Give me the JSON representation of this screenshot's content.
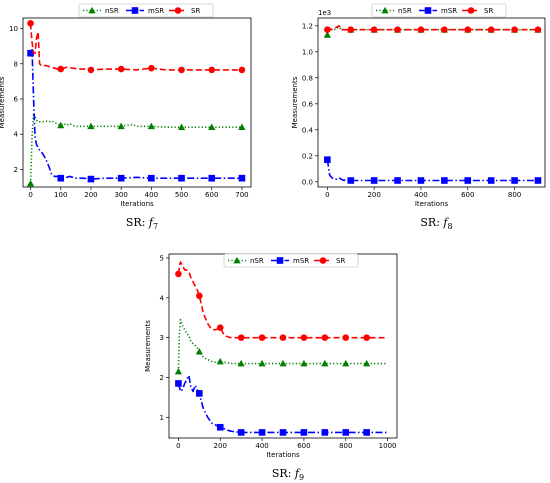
{
  "chart_data": [
    {
      "type": "line",
      "caption": "SR: ",
      "caption_fn": "f",
      "caption_sub": "7",
      "xlabel": "Iterations",
      "ylabel": "Measurements",
      "scale_label": "",
      "xlim": [
        -25,
        730
      ],
      "ylim": [
        1.0,
        10.6
      ],
      "xticks": [
        0,
        100,
        200,
        300,
        400,
        500,
        600,
        700
      ],
      "yticks": [
        2,
        4,
        6,
        8,
        10
      ],
      "series": [
        {
          "name": "nSR",
          "color": "#008000",
          "style": "dotted",
          "marker": "triangle",
          "x": [
            0,
            5,
            10,
            15,
            20,
            25,
            30,
            40,
            50,
            60,
            70,
            80,
            90,
            100,
            110,
            120,
            130,
            140,
            150,
            175,
            200,
            250,
            300,
            340,
            350,
            380,
            400,
            450,
            500,
            550,
            600,
            650,
            700
          ],
          "y": [
            1.2,
            3.9,
            5.2,
            5.0,
            4.8,
            4.7,
            4.7,
            4.7,
            4.75,
            4.7,
            4.75,
            4.65,
            4.6,
            4.5,
            4.6,
            4.5,
            4.6,
            4.5,
            4.45,
            4.45,
            4.45,
            4.45,
            4.45,
            4.55,
            4.45,
            4.45,
            4.45,
            4.4,
            4.4,
            4.4,
            4.4,
            4.4,
            4.4
          ],
          "markers_x": [
            0,
            100,
            200,
            300,
            400,
            500,
            600,
            700
          ],
          "markers_y": [
            1.2,
            4.5,
            4.45,
            4.45,
            4.45,
            4.4,
            4.4,
            4.4
          ]
        },
        {
          "name": "mSR",
          "color": "#0000ff",
          "style": "dashdot",
          "marker": "square",
          "x": [
            0,
            5,
            10,
            15,
            20,
            30,
            40,
            50,
            60,
            70,
            80,
            90,
            100,
            110,
            120,
            130,
            140,
            150,
            175,
            200,
            250,
            300,
            350,
            400,
            450,
            500,
            550,
            600,
            650,
            700
          ],
          "y": [
            8.6,
            8.8,
            6.0,
            3.8,
            3.4,
            3.1,
            2.9,
            2.6,
            2.2,
            1.7,
            1.6,
            1.6,
            1.5,
            1.55,
            1.55,
            1.6,
            1.55,
            1.5,
            1.5,
            1.45,
            1.5,
            1.5,
            1.55,
            1.5,
            1.5,
            1.5,
            1.5,
            1.5,
            1.5,
            1.5
          ],
          "markers_x": [
            0,
            100,
            200,
            300,
            400,
            500,
            600,
            700
          ],
          "markers_y": [
            8.6,
            1.5,
            1.45,
            1.5,
            1.5,
            1.5,
            1.5,
            1.5
          ]
        },
        {
          "name": "SR",
          "color": "#ff0000",
          "style": "dashed",
          "marker": "circle",
          "x": [
            0,
            5,
            10,
            15,
            20,
            25,
            30,
            35,
            40,
            50,
            60,
            70,
            80,
            90,
            100,
            120,
            140,
            160,
            180,
            200,
            250,
            300,
            350,
            400,
            450,
            500,
            550,
            600,
            650,
            700
          ],
          "y": [
            10.3,
            9.2,
            8.6,
            8.6,
            9.5,
            9.8,
            8.0,
            7.9,
            7.9,
            7.9,
            7.85,
            7.8,
            7.75,
            7.7,
            7.7,
            7.8,
            7.75,
            7.7,
            7.7,
            7.65,
            7.7,
            7.7,
            7.65,
            7.75,
            7.65,
            7.65,
            7.65,
            7.65,
            7.65,
            7.65
          ],
          "markers_x": [
            0,
            100,
            200,
            300,
            400,
            500,
            600,
            700
          ],
          "markers_y": [
            10.3,
            7.7,
            7.65,
            7.7,
            7.75,
            7.65,
            7.65,
            7.65
          ]
        }
      ]
    },
    {
      "type": "line",
      "caption": "SR: ",
      "caption_fn": "f",
      "caption_sub": "8",
      "xlabel": "Iterations",
      "ylabel": "Measurements",
      "scale_label": "1e3",
      "xlim": [
        -40,
        930
      ],
      "ylim": [
        -0.04,
        1.26
      ],
      "xticks": [
        0,
        200,
        400,
        600,
        800
      ],
      "yticks": [
        0.0,
        0.2,
        0.4,
        0.6,
        0.8,
        1.0,
        1.2
      ],
      "series": [
        {
          "name": "nSR",
          "color": "#008000",
          "style": "dotted",
          "marker": "triangle",
          "x": [
            0,
            10,
            20,
            30,
            50,
            60,
            80,
            100,
            150,
            200,
            300,
            400,
            500,
            600,
            700,
            800,
            900
          ],
          "y": [
            1.13,
            1.17,
            1.17,
            1.17,
            1.19,
            1.17,
            1.17,
            1.17,
            1.17,
            1.17,
            1.17,
            1.17,
            1.17,
            1.17,
            1.17,
            1.17,
            1.17
          ],
          "markers_x": [
            0,
            100,
            200,
            300,
            400,
            500,
            600,
            700,
            800,
            900
          ],
          "markers_y": [
            1.13,
            1.17,
            1.17,
            1.17,
            1.17,
            1.17,
            1.17,
            1.17,
            1.17,
            1.17
          ]
        },
        {
          "name": "mSR",
          "color": "#0000ff",
          "style": "dashdot",
          "marker": "square",
          "x": [
            0,
            10,
            20,
            30,
            40,
            50,
            60,
            70,
            80,
            100,
            200,
            300,
            400,
            500,
            600,
            700,
            800,
            900
          ],
          "y": [
            0.17,
            0.05,
            0.03,
            0.02,
            0.02,
            0.03,
            0.02,
            0.01,
            0.02,
            0.01,
            0.01,
            0.01,
            0.01,
            0.01,
            0.01,
            0.01,
            0.01,
            0.01
          ],
          "markers_x": [
            0,
            100,
            200,
            300,
            400,
            500,
            600,
            700,
            800,
            900
          ],
          "markers_y": [
            0.17,
            0.01,
            0.01,
            0.01,
            0.01,
            0.01,
            0.01,
            0.01,
            0.01,
            0.01
          ]
        },
        {
          "name": "SR",
          "color": "#ff0000",
          "style": "dashed",
          "marker": "circle",
          "x": [
            0,
            10,
            20,
            30,
            40,
            50,
            60,
            80,
            100,
            200,
            300,
            400,
            500,
            600,
            700,
            800,
            900
          ],
          "y": [
            1.17,
            1.18,
            1.17,
            1.18,
            1.19,
            1.2,
            1.17,
            1.17,
            1.17,
            1.17,
            1.17,
            1.17,
            1.17,
            1.17,
            1.17,
            1.17,
            1.17
          ],
          "markers_x": [
            0,
            100,
            200,
            300,
            400,
            500,
            600,
            700,
            800,
            900
          ],
          "markers_y": [
            1.17,
            1.17,
            1.17,
            1.17,
            1.17,
            1.17,
            1.17,
            1.17,
            1.17,
            1.17
          ]
        }
      ]
    },
    {
      "type": "line",
      "caption": "SR: ",
      "caption_fn": "f",
      "caption_sub": "9",
      "xlabel": "Iterations",
      "ylabel": "Measurements",
      "scale_label": "",
      "xlim": [
        -45,
        1045
      ],
      "ylim": [
        0.48,
        5.1
      ],
      "xticks": [
        0,
        200,
        400,
        600,
        800,
        1000
      ],
      "yticks": [
        1,
        2,
        3,
        4,
        5
      ],
      "series": [
        {
          "name": "nSR",
          "color": "#008000",
          "style": "dotted",
          "marker": "triangle",
          "x": [
            0,
            5,
            10,
            20,
            30,
            40,
            50,
            60,
            70,
            80,
            90,
            100,
            120,
            140,
            160,
            180,
            200,
            250,
            300,
            400,
            500,
            600,
            700,
            800,
            900,
            1000
          ],
          "y": [
            2.15,
            3.1,
            3.45,
            3.3,
            3.2,
            3.1,
            3.05,
            2.9,
            2.85,
            2.8,
            2.75,
            2.65,
            2.5,
            2.45,
            2.4,
            2.38,
            2.4,
            2.35,
            2.35,
            2.35,
            2.35,
            2.35,
            2.35,
            2.35,
            2.35,
            2.35
          ],
          "markers_x": [
            0,
            100,
            200,
            300,
            400,
            500,
            600,
            700,
            800,
            900
          ],
          "markers_y": [
            2.15,
            2.65,
            2.4,
            2.35,
            2.35,
            2.35,
            2.35,
            2.35,
            2.35,
            2.35
          ]
        },
        {
          "name": "mSR",
          "color": "#0000ff",
          "style": "dashdot",
          "marker": "square",
          "x": [
            0,
            10,
            20,
            30,
            40,
            50,
            60,
            70,
            80,
            90,
            100,
            120,
            140,
            160,
            180,
            200,
            250,
            300,
            400,
            500,
            600,
            700,
            800,
            900,
            1000
          ],
          "y": [
            1.85,
            1.65,
            1.7,
            1.85,
            1.95,
            2.05,
            1.75,
            1.65,
            1.8,
            1.7,
            1.6,
            1.2,
            1.0,
            0.85,
            0.8,
            0.75,
            0.65,
            0.62,
            0.62,
            0.62,
            0.62,
            0.62,
            0.62,
            0.62,
            0.62
          ],
          "markers_x": [
            0,
            100,
            200,
            300,
            400,
            500,
            600,
            700,
            800,
            900
          ],
          "markers_y": [
            1.85,
            1.6,
            0.75,
            0.62,
            0.62,
            0.62,
            0.62,
            0.62,
            0.62,
            0.62
          ]
        },
        {
          "name": "SR",
          "color": "#ff0000",
          "style": "dashed",
          "marker": "circle",
          "x": [
            0,
            5,
            10,
            20,
            30,
            40,
            50,
            60,
            70,
            80,
            90,
            100,
            120,
            140,
            160,
            180,
            200,
            220,
            250,
            300,
            400,
            500,
            600,
            700,
            800,
            900,
            1000
          ],
          "y": [
            4.6,
            4.8,
            4.9,
            4.8,
            4.7,
            4.7,
            4.65,
            4.5,
            4.4,
            4.3,
            4.2,
            4.05,
            3.6,
            3.35,
            3.2,
            3.2,
            3.25,
            3.05,
            3.0,
            3.0,
            3.0,
            3.0,
            3.0,
            3.0,
            3.0,
            3.0,
            3.0
          ],
          "markers_x": [
            0,
            100,
            200,
            300,
            400,
            500,
            600,
            700,
            800,
            900
          ],
          "markers_y": [
            4.6,
            4.05,
            3.25,
            3.0,
            3.0,
            3.0,
            3.0,
            3.0,
            3.0,
            3.0
          ]
        }
      ]
    }
  ]
}
